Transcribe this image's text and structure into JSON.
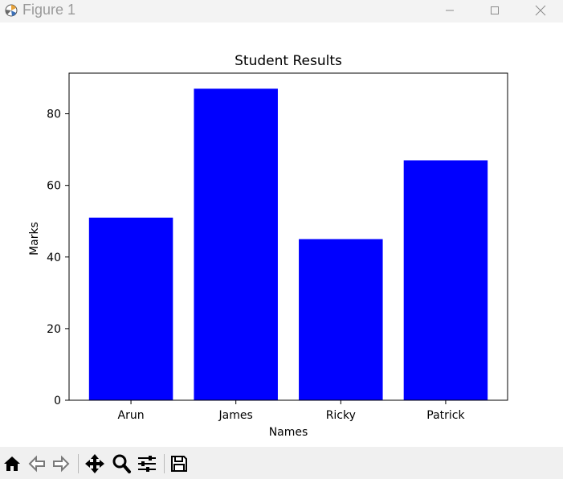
{
  "window": {
    "title": "Figure 1"
  },
  "toolbar": {
    "tools": [
      "home-icon",
      "back-arrow-icon",
      "forward-arrow-icon",
      "pan-icon",
      "zoom-icon",
      "configure-subplots-icon",
      "save-icon"
    ]
  },
  "chart_data": {
    "type": "bar",
    "title": "Student Results",
    "xlabel": "Names",
    "ylabel": "Marks",
    "categories": [
      "Arun",
      "James",
      "Ricky",
      "Patrick"
    ],
    "values": [
      51,
      87,
      45,
      67
    ],
    "ylim": [
      0,
      91.35
    ],
    "yticks": [
      0,
      20,
      40,
      60,
      80
    ],
    "bar_color": "#0000ff",
    "grid": false
  }
}
